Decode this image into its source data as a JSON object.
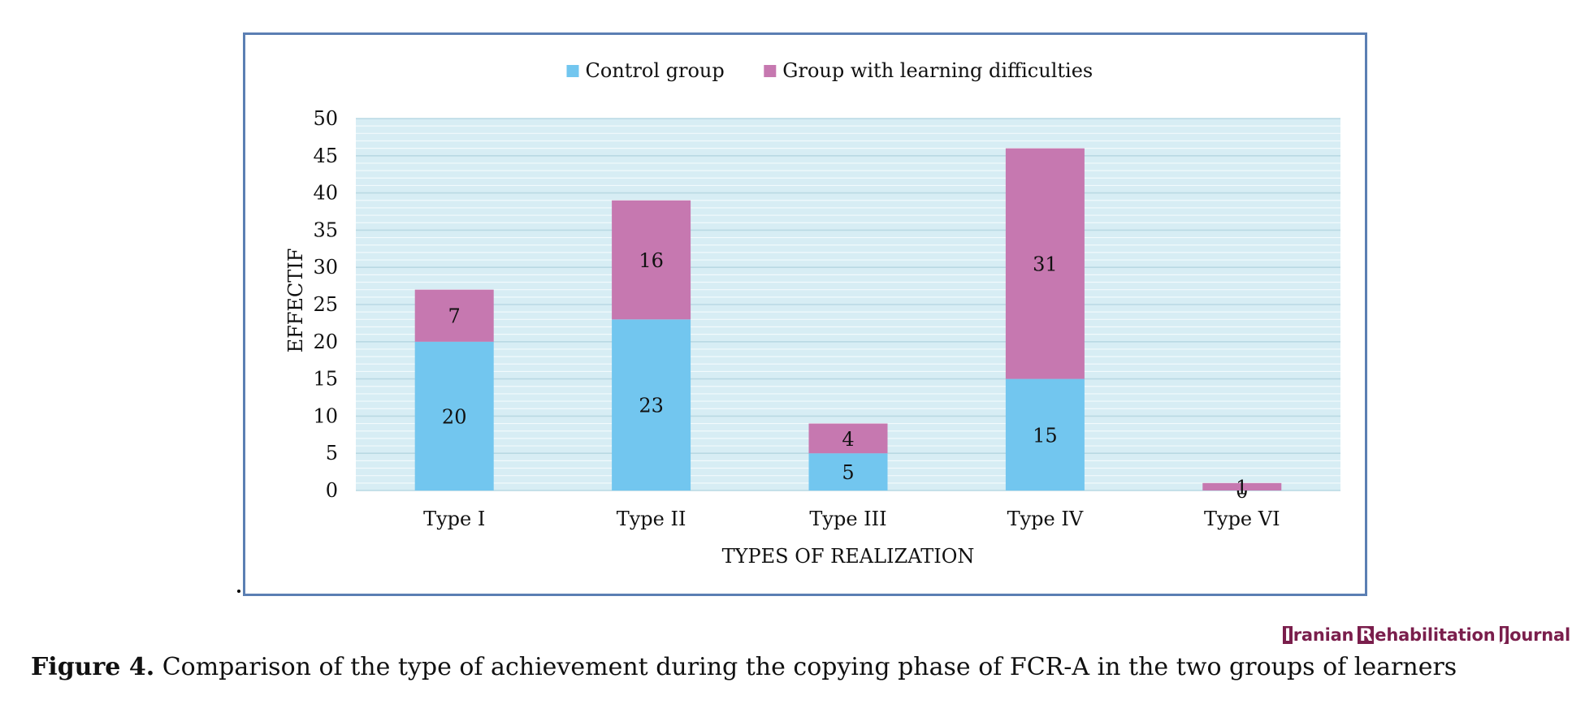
{
  "figure": {
    "label": "Figure 4.",
    "caption": "Comparison of the type of achievement during the copying phase of FCR-A in the two groups of learners",
    "journal_logo": {
      "words": [
        {
          "cap": "I",
          "rest": "ranian"
        },
        {
          "cap": "R",
          "rest": "ehabilitation"
        },
        {
          "cap": "J",
          "rest": "ournal"
        }
      ]
    }
  },
  "chart_data": {
    "type": "bar",
    "stacked": true,
    "title": "",
    "xlabel": "TYPES OF REALIZATION",
    "ylabel": "EFFECTIF",
    "categories": [
      "Type I",
      "Type II",
      "Type III",
      "Type IV",
      "Type VI"
    ],
    "series": [
      {
        "name": "Control group",
        "values": [
          20,
          23,
          5,
          15,
          0
        ],
        "color": "#72c6ef"
      },
      {
        "name": "Group with learning difficulties",
        "values": [
          7,
          16,
          4,
          31,
          1
        ],
        "color": "#c678b0"
      }
    ],
    "ylim": [
      0,
      50
    ],
    "yticks": [
      0,
      5,
      10,
      15,
      20,
      25,
      30,
      35,
      40,
      45,
      50
    ],
    "legend_position": "top",
    "data_labels": true,
    "grid": true,
    "plot_background": "#d7edf4"
  }
}
